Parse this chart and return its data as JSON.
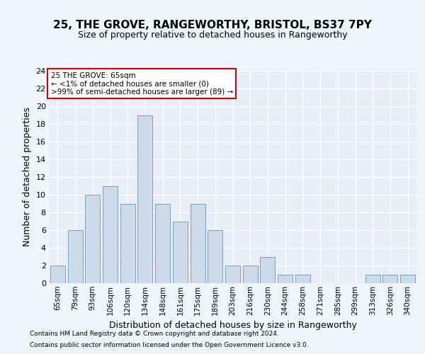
{
  "title1": "25, THE GROVE, RANGEWORTHY, BRISTOL, BS37 7PY",
  "title2": "Size of property relative to detached houses in Rangeworthy",
  "xlabel": "Distribution of detached houses by size in Rangeworthy",
  "ylabel": "Number of detached properties",
  "categories": [
    "65sqm",
    "79sqm",
    "93sqm",
    "106sqm",
    "120sqm",
    "134sqm",
    "148sqm",
    "161sqm",
    "175sqm",
    "189sqm",
    "203sqm",
    "216sqm",
    "230sqm",
    "244sqm",
    "258sqm",
    "271sqm",
    "285sqm",
    "299sqm",
    "313sqm",
    "326sqm",
    "340sqm"
  ],
  "values": [
    2,
    6,
    10,
    11,
    9,
    19,
    9,
    7,
    9,
    6,
    2,
    2,
    3,
    1,
    1,
    0,
    0,
    0,
    1,
    1,
    1
  ],
  "bar_color": "#ccd9e8",
  "bar_edge_color": "#7a9fc0",
  "annotation_text": "25 THE GROVE: 65sqm\n← <1% of detached houses are smaller (0)\n>99% of semi-detached houses are larger (89) →",
  "ylim": [
    0,
    24
  ],
  "yticks": [
    0,
    2,
    4,
    6,
    8,
    10,
    12,
    14,
    16,
    18,
    20,
    22,
    24
  ],
  "footer1": "Contains HM Land Registry data © Crown copyright and database right 2024.",
  "footer2": "Contains public sector information licensed under the Open Government Licence v3.0.",
  "bg_color": "#f0f4fa",
  "plot_bg_color": "#e8eef8",
  "grid_color": "#ffffff",
  "annotation_box_color": "#ffffff",
  "annotation_border_color": "#cc0000",
  "title1_fontsize": 11,
  "title2_fontsize": 9,
  "ylabel_fontsize": 9,
  "xlabel_fontsize": 9,
  "tick_fontsize": 8,
  "xtick_fontsize": 7.5,
  "footer_fontsize": 6.5
}
